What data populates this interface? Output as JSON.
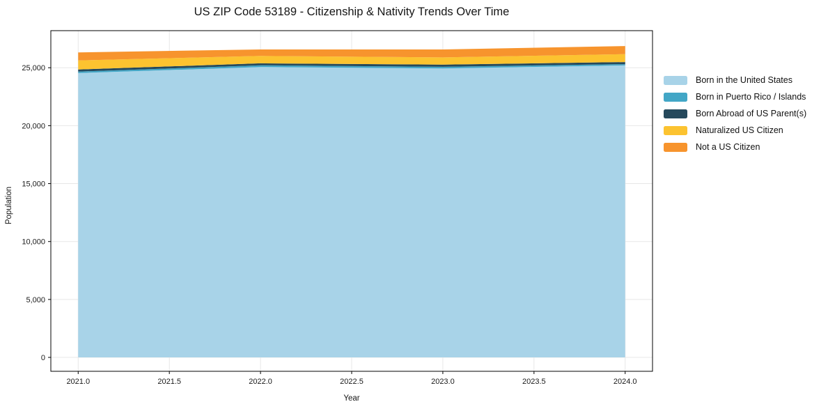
{
  "chart_data": {
    "type": "area",
    "stacked": true,
    "title": "US ZIP Code 53189 - Citizenship & Nativity Trends Over Time",
    "xlabel": "Year",
    "ylabel": "Population",
    "x": [
      2021,
      2022,
      2023,
      2024
    ],
    "series": [
      {
        "name": "Born in the United States",
        "color": "#A8D3E8",
        "values": [
          24540,
          25060,
          24940,
          25200
        ]
      },
      {
        "name": "Born in Puerto Rico / Islands",
        "color": "#42A6C6",
        "values": [
          130,
          150,
          140,
          110
        ]
      },
      {
        "name": "Born Abroad of US Parent(s)",
        "color": "#25495C",
        "values": [
          180,
          170,
          190,
          180
        ]
      },
      {
        "name": "Naturalized US Citizen",
        "color": "#FCC330",
        "values": [
          780,
          640,
          620,
          680
        ]
      },
      {
        "name": "Not a US Citizen",
        "color": "#F7942D",
        "values": [
          690,
          560,
          690,
          700
        ]
      }
    ],
    "totals": [
      26320,
      26580,
      26580,
      26870
    ],
    "xlim": [
      2020.85,
      2024.15
    ],
    "ylim": [
      -1200,
      28200
    ],
    "x_ticks": {
      "values": [
        2021.0,
        2021.5,
        2022.0,
        2022.5,
        2023.0,
        2023.5,
        2024.0
      ],
      "labels": [
        "2021.0",
        "2021.5",
        "2022.0",
        "2022.5",
        "2023.0",
        "2023.5",
        "2024.0"
      ]
    },
    "y_ticks": {
      "values": [
        0,
        5000,
        10000,
        15000,
        20000,
        25000
      ],
      "labels": [
        "0",
        "5,000",
        "10,000",
        "15,000",
        "20,000",
        "25,000"
      ]
    },
    "grid": true,
    "grid_color": "#e7e7e7",
    "spine_color": "#000000",
    "background": "#ffffff",
    "legend_position": "right"
  }
}
